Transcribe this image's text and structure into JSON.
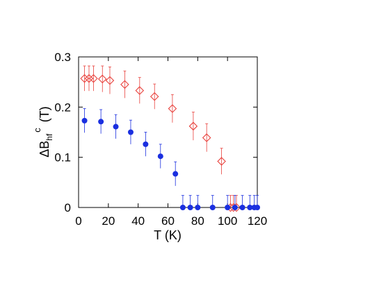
{
  "chart_data": {
    "type": "scatter",
    "title": "",
    "xlabel": "T (K)",
    "ylabel": {
      "base": "ΔB",
      "subscript": "hf",
      "superscript": "c",
      "unit": "(T)"
    },
    "xlim": [
      0,
      120
    ],
    "ylim": [
      0,
      0.3
    ],
    "xticks": [
      0,
      20,
      40,
      60,
      80,
      100,
      120
    ],
    "yticks": [
      0,
      0.1,
      0.2,
      0.3
    ],
    "xtick_labels": [
      "0",
      "20",
      "40",
      "60",
      "80",
      "100",
      "120"
    ],
    "ytick_labels": [
      "0",
      "0.1",
      "0.2",
      "0.3"
    ],
    "grid": false,
    "legend": "none",
    "series": [
      {
        "marker": "open-diamond",
        "color": "#e8413c",
        "x": [
          4,
          7,
          10,
          16,
          21,
          31,
          41,
          51,
          63,
          77,
          86,
          96,
          102,
          104,
          106
        ],
        "y": [
          0.257,
          0.257,
          0.257,
          0.256,
          0.253,
          0.245,
          0.233,
          0.221,
          0.197,
          0.162,
          0.139,
          0.092,
          0.0,
          0.0,
          0.0
        ],
        "err": [
          0.025,
          0.025,
          0.025,
          0.026,
          0.027,
          0.027,
          0.026,
          0.025,
          0.028,
          0.028,
          0.028,
          0.026,
          0.024,
          0.024,
          0.024
        ]
      },
      {
        "marker": "filled-circle",
        "color": "#1a2fe0",
        "x": [
          4,
          15,
          25,
          35,
          45,
          55,
          65,
          70,
          75,
          80,
          90,
          100,
          105,
          110,
          115,
          118,
          120
        ],
        "y": [
          0.173,
          0.171,
          0.161,
          0.15,
          0.126,
          0.102,
          0.067,
          0.0,
          0.0,
          0.0,
          0.0,
          0.0,
          0.0,
          0.0,
          0.0,
          0.0,
          0.0
        ],
        "err": [
          0.024,
          0.024,
          0.024,
          0.024,
          0.024,
          0.024,
          0.024,
          0.024,
          0.024,
          0.024,
          0.024,
          0.024,
          0.024,
          0.024,
          0.024,
          0.024,
          0.024
        ]
      }
    ]
  }
}
